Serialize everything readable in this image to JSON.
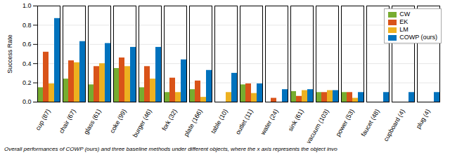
{
  "chart_data": {
    "type": "bar",
    "categories": [
      "cup (87)",
      "chair (67)",
      "glass (61)",
      "coke (99)",
      "burger (46)",
      "fork (32)",
      "plate (166)",
      "table (10)",
      "outlet (11)",
      "water (24)",
      "sink (61)",
      "vacuum (103)",
      "power (53)",
      "faucet (48)",
      "cupboard (4)",
      "plug (4)"
    ],
    "series": [
      {
        "name": "CW",
        "color": "#77ac30",
        "values": [
          0.15,
          0.24,
          0.18,
          0.35,
          0.15,
          0.1,
          0.13,
          0.0,
          0.18,
          0.0,
          0.11,
          0.1,
          0.1,
          0.0,
          0.0,
          0.0
        ]
      },
      {
        "name": "EK",
        "color": "#d95319",
        "values": [
          0.52,
          0.43,
          0.37,
          0.46,
          0.37,
          0.25,
          0.22,
          0.0,
          0.19,
          0.04,
          0.06,
          0.1,
          0.1,
          0.0,
          0.0,
          0.0
        ]
      },
      {
        "name": "LM",
        "color": "#edb120",
        "values": [
          0.19,
          0.41,
          0.4,
          0.37,
          0.24,
          0.1,
          0.05,
          0.1,
          0.09,
          0.0,
          0.12,
          0.12,
          0.04,
          0.0,
          0.0,
          0.0
        ]
      },
      {
        "name": "COWP (ours)",
        "color": "#0072bd",
        "values": [
          0.87,
          0.63,
          0.61,
          0.57,
          0.57,
          0.44,
          0.33,
          0.3,
          0.19,
          0.13,
          0.13,
          0.12,
          0.1,
          0.1,
          0.1,
          0.1
        ]
      }
    ],
    "ylabel": "Success Rate",
    "ylim": [
      0,
      1.0
    ],
    "yticks": [
      {
        "value": 0,
        "label": "0.0"
      },
      0.2,
      0.4,
      0.6,
      0.8,
      {
        "value": 1.0,
        "label": "1.0"
      }
    ],
    "grid": true,
    "legend": "upper right",
    "caption": "Overall performances of COWP (ours) and three baseline methods under different objects, where the x axis represents the object invo"
  }
}
